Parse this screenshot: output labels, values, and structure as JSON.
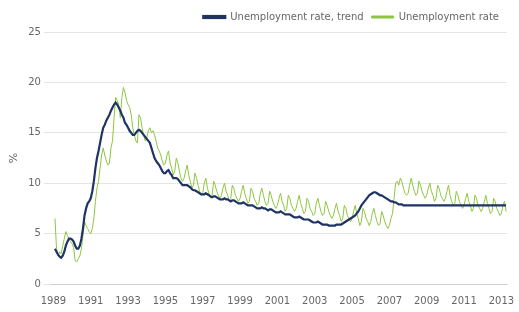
{
  "chart_data": {
    "type": "line",
    "ylabel": "%",
    "xlim": [
      1988.92,
      2013.3
    ],
    "xticks": [
      1989,
      1991,
      1993,
      1995,
      1997,
      1999,
      2001,
      2003,
      2005,
      2007,
      2009,
      2011,
      2013
    ],
    "ylim": [
      0,
      25
    ],
    "yticks": [
      0,
      5,
      10,
      15,
      20,
      25
    ],
    "grid": "y",
    "legend": "upper right",
    "x": [
      1989.083333,
      1989.166667,
      1989.25,
      1989.333333,
      1989.416667,
      1989.5,
      1989.583333,
      1989.666667,
      1989.75,
      1989.833333,
      1989.916667,
      1990,
      1990.083333,
      1990.166667,
      1990.25,
      1990.333333,
      1990.416667,
      1990.5,
      1990.583333,
      1990.666667,
      1990.75,
      1990.833333,
      1990.916667,
      1991,
      1991.083333,
      1991.166667,
      1991.25,
      1991.333333,
      1991.416667,
      1991.5,
      1991.583333,
      1991.666667,
      1991.75,
      1991.833333,
      1991.916667,
      1992,
      1992.083333,
      1992.166667,
      1992.25,
      1992.333333,
      1992.416667,
      1992.5,
      1992.583333,
      1992.666667,
      1992.75,
      1992.833333,
      1992.916667,
      1993,
      1993.083333,
      1993.166667,
      1993.25,
      1993.333333,
      1993.416667,
      1993.5,
      1993.583333,
      1993.666667,
      1993.75,
      1993.833333,
      1993.916667,
      1994,
      1994.083333,
      1994.166667,
      1994.25,
      1994.333333,
      1994.416667,
      1994.5,
      1994.583333,
      1994.666667,
      1994.75,
      1994.833333,
      1994.916667,
      1995,
      1995.083333,
      1995.166667,
      1995.25,
      1995.333333,
      1995.416667,
      1995.5,
      1995.583333,
      1995.666667,
      1995.75,
      1995.833333,
      1995.916667,
      1996,
      1996.083333,
      1996.166667,
      1996.25,
      1996.333333,
      1996.416667,
      1996.5,
      1996.583333,
      1996.666667,
      1996.75,
      1996.833333,
      1996.916667,
      1997,
      1997.083333,
      1997.166667,
      1997.25,
      1997.333333,
      1997.416667,
      1997.5,
      1997.583333,
      1997.666667,
      1997.75,
      1997.833333,
      1997.916667,
      1998,
      1998.083333,
      1998.166667,
      1998.25,
      1998.333333,
      1998.416667,
      1998.5,
      1998.583333,
      1998.666667,
      1998.75,
      1998.833333,
      1998.916667,
      1999,
      1999.083333,
      1999.166667,
      1999.25,
      1999.333333,
      1999.416667,
      1999.5,
      1999.583333,
      1999.666667,
      1999.75,
      1999.833333,
      1999.916667,
      2000,
      2000.083333,
      2000.166667,
      2000.25,
      2000.333333,
      2000.416667,
      2000.5,
      2000.583333,
      2000.666667,
      2000.75,
      2000.833333,
      2000.916667,
      2001,
      2001.083333,
      2001.166667,
      2001.25,
      2001.333333,
      2001.416667,
      2001.5,
      2001.583333,
      2001.666667,
      2001.75,
      2001.833333,
      2001.916667,
      2002,
      2002.083333,
      2002.166667,
      2002.25,
      2002.333333,
      2002.416667,
      2002.5,
      2002.583333,
      2002.666667,
      2002.75,
      2002.833333,
      2002.916667,
      2003,
      2003.083333,
      2003.166667,
      2003.25,
      2003.333333,
      2003.416667,
      2003.5,
      2003.583333,
      2003.666667,
      2003.75,
      2003.833333,
      2003.916667,
      2004,
      2004.083333,
      2004.166667,
      2004.25,
      2004.333333,
      2004.416667,
      2004.5,
      2004.583333,
      2004.666667,
      2004.75,
      2004.833333,
      2004.916667,
      2005,
      2005.083333,
      2005.166667,
      2005.25,
      2005.333333,
      2005.416667,
      2005.5,
      2005.583333,
      2005.666667,
      2005.75,
      2005.833333,
      2005.916667,
      2006,
      2006.083333,
      2006.166667,
      2006.25,
      2006.333333,
      2006.416667,
      2006.5,
      2006.583333,
      2006.666667,
      2006.75,
      2006.833333,
      2006.916667,
      2007,
      2007.083333,
      2007.166667,
      2007.25,
      2007.333333,
      2007.416667,
      2007.5,
      2007.583333,
      2007.666667,
      2007.75,
      2007.833333,
      2007.916667,
      2008,
      2008.083333,
      2008.166667,
      2008.25,
      2008.333333,
      2008.416667,
      2008.5,
      2008.583333,
      2008.666667,
      2008.75,
      2008.833333,
      2008.916667,
      2009,
      2009.083333,
      2009.166667,
      2009.25,
      2009.333333,
      2009.416667,
      2009.5,
      2009.583333,
      2009.666667,
      2009.75,
      2009.833333,
      2009.916667,
      2010,
      2010.083333,
      2010.166667,
      2010.25,
      2010.333333,
      2010.416667,
      2010.5,
      2010.583333,
      2010.666667,
      2010.75,
      2010.833333,
      2010.916667,
      2011,
      2011.083333,
      2011.166667,
      2011.25,
      2011.333333,
      2011.416667,
      2011.5,
      2011.583333,
      2011.666667,
      2011.75,
      2011.833333,
      2011.916667,
      2012,
      2012.083333,
      2012.166667,
      2012.25,
      2012.333333,
      2012.416667,
      2012.5,
      2012.583333,
      2012.666667,
      2012.75,
      2012.833333,
      2012.916667,
      2013,
      2013.083333,
      2013.166667,
      2013.25
    ],
    "series": [
      {
        "name": "Unemployment rate",
        "color": "#8dc63f",
        "values": [
          6.5,
          3.5,
          2.8,
          3.2,
          3.0,
          3.8,
          4.5,
          5.2,
          4.8,
          4.5,
          4.2,
          4.0,
          3.6,
          2.3,
          2.2,
          2.5,
          2.8,
          3.5,
          4.8,
          6.2,
          5.8,
          5.5,
          5.2,
          5.0,
          5.5,
          6.5,
          8.2,
          9.5,
          10.2,
          11.5,
          12.8,
          13.5,
          12.8,
          12.2,
          11.8,
          12.0,
          13.5,
          14.2,
          16.5,
          18.5,
          18.2,
          17.8,
          16.5,
          18.5,
          19.5,
          19.0,
          18.2,
          17.8,
          17.5,
          16.8,
          15.5,
          14.8,
          14.2,
          14.0,
          16.8,
          16.5,
          15.5,
          14.8,
          14.2,
          14.5,
          15.2,
          15.5,
          15.0,
          15.2,
          14.8,
          14.2,
          13.5,
          13.2,
          12.8,
          12.2,
          11.8,
          12.0,
          12.8,
          13.2,
          12.0,
          11.5,
          10.8,
          11.2,
          12.5,
          12.0,
          11.2,
          10.5,
          10.2,
          10.5,
          11.2,
          11.8,
          10.8,
          10.2,
          9.5,
          9.8,
          11.0,
          10.5,
          9.8,
          9.2,
          8.8,
          9.0,
          10.0,
          10.5,
          9.5,
          9.0,
          8.5,
          8.8,
          10.2,
          9.8,
          9.2,
          8.8,
          8.5,
          8.8,
          9.5,
          10.0,
          9.2,
          8.8,
          8.2,
          8.5,
          9.8,
          9.5,
          8.8,
          8.5,
          8.2,
          8.5,
          9.2,
          9.8,
          9.0,
          8.5,
          8.0,
          8.2,
          9.5,
          9.2,
          8.5,
          8.2,
          7.8,
          8.0,
          9.0,
          9.5,
          8.8,
          8.2,
          7.8,
          8.0,
          9.2,
          8.8,
          8.2,
          7.8,
          7.5,
          7.8,
          8.5,
          9.0,
          8.2,
          7.8,
          7.2,
          7.5,
          8.8,
          8.5,
          7.8,
          7.5,
          7.2,
          7.5,
          8.2,
          8.8,
          8.0,
          7.5,
          7.0,
          7.2,
          8.5,
          8.2,
          7.5,
          7.2,
          6.8,
          7.0,
          8.0,
          8.5,
          7.8,
          7.2,
          6.8,
          7.0,
          8.2,
          7.8,
          7.2,
          6.8,
          6.5,
          6.8,
          7.5,
          8.0,
          7.2,
          6.8,
          6.2,
          6.5,
          7.8,
          7.5,
          6.8,
          6.5,
          6.2,
          6.5,
          7.2,
          7.8,
          7.0,
          6.5,
          5.8,
          6.2,
          7.5,
          7.2,
          6.5,
          6.2,
          5.8,
          6.2,
          7.0,
          7.5,
          6.8,
          6.2,
          5.8,
          6.0,
          7.2,
          6.8,
          6.2,
          5.8,
          5.5,
          5.8,
          6.5,
          7.0,
          8.5,
          10.0,
          10.2,
          9.8,
          10.5,
          10.2,
          9.5,
          9.0,
          8.8,
          9.0,
          9.8,
          10.5,
          9.8,
          9.2,
          8.8,
          9.0,
          10.2,
          9.8,
          9.2,
          8.8,
          8.5,
          8.8,
          9.5,
          10.0,
          9.2,
          8.8,
          8.2,
          8.5,
          9.8,
          9.5,
          8.8,
          8.5,
          8.2,
          8.5,
          9.2,
          9.8,
          8.8,
          8.2,
          7.8,
          8.0,
          9.2,
          8.8,
          8.2,
          7.8,
          7.5,
          7.8,
          8.5,
          9.0,
          8.2,
          7.8,
          7.2,
          7.5,
          8.8,
          8.5,
          7.8,
          7.5,
          7.2,
          7.5,
          8.2,
          8.8,
          8.0,
          7.5,
          7.0,
          7.2,
          8.5,
          8.2,
          7.5,
          7.2,
          6.8,
          7.0,
          7.8,
          8.2,
          7.2
        ]
      },
      {
        "name": "Unemployment rate, trend",
        "color": "#1f3464",
        "values": [
          3.5,
          3.2,
          2.9,
          2.7,
          2.6,
          2.8,
          3.2,
          3.8,
          4.2,
          4.5,
          4.5,
          4.4,
          4.2,
          3.8,
          3.5,
          3.5,
          3.8,
          4.5,
          5.5,
          6.8,
          7.5,
          8.0,
          8.2,
          8.5,
          9.2,
          10.2,
          11.5,
          12.5,
          13.2,
          14.0,
          14.8,
          15.5,
          15.8,
          16.2,
          16.5,
          16.8,
          17.2,
          17.5,
          17.8,
          18.0,
          17.8,
          17.5,
          17.2,
          16.8,
          16.5,
          16.0,
          15.8,
          15.5,
          15.2,
          15.0,
          14.8,
          14.8,
          15.0,
          15.2,
          15.3,
          15.2,
          15.0,
          14.8,
          14.6,
          14.4,
          14.2,
          14.0,
          13.5,
          13.0,
          12.5,
          12.2,
          12.0,
          11.8,
          11.5,
          11.2,
          11.0,
          11.0,
          11.2,
          11.3,
          11.0,
          10.8,
          10.5,
          10.5,
          10.5,
          10.4,
          10.2,
          10.0,
          9.8,
          9.8,
          9.8,
          9.8,
          9.7,
          9.6,
          9.4,
          9.3,
          9.3,
          9.2,
          9.1,
          9.0,
          8.9,
          8.9,
          8.9,
          9.0,
          8.9,
          8.8,
          8.7,
          8.6,
          8.7,
          8.7,
          8.6,
          8.5,
          8.4,
          8.4,
          8.4,
          8.5,
          8.4,
          8.4,
          8.3,
          8.2,
          8.3,
          8.3,
          8.2,
          8.1,
          8.0,
          8.0,
          8.0,
          8.1,
          8.0,
          7.9,
          7.8,
          7.8,
          7.8,
          7.8,
          7.7,
          7.6,
          7.5,
          7.5,
          7.5,
          7.6,
          7.5,
          7.5,
          7.4,
          7.3,
          7.4,
          7.4,
          7.3,
          7.2,
          7.1,
          7.1,
          7.1,
          7.2,
          7.1,
          7.0,
          6.9,
          6.9,
          6.9,
          6.9,
          6.8,
          6.7,
          6.6,
          6.6,
          6.6,
          6.7,
          6.6,
          6.5,
          6.4,
          6.4,
          6.4,
          6.4,
          6.3,
          6.2,
          6.1,
          6.1,
          6.1,
          6.2,
          6.1,
          6.0,
          5.9,
          5.9,
          5.9,
          5.9,
          5.8,
          5.8,
          5.8,
          5.8,
          5.8,
          5.9,
          5.9,
          5.9,
          5.9,
          6.0,
          6.1,
          6.2,
          6.3,
          6.4,
          6.5,
          6.6,
          6.7,
          6.8,
          7.0,
          7.2,
          7.5,
          7.8,
          8.0,
          8.2,
          8.4,
          8.6,
          8.8,
          8.9,
          9.0,
          9.1,
          9.1,
          9.0,
          8.9,
          8.8,
          8.8,
          8.7,
          8.6,
          8.5,
          8.4,
          8.3,
          8.2,
          8.2,
          8.1,
          8.1,
          8.0,
          7.9,
          7.9,
          7.9,
          7.8,
          7.8,
          7.8,
          7.8,
          7.8,
          7.8,
          7.8,
          7.8,
          7.8,
          7.8,
          7.8,
          7.8,
          7.8,
          7.8,
          7.8,
          7.8,
          7.8,
          7.8,
          7.8,
          7.8,
          7.8,
          7.8,
          7.8,
          7.8,
          7.8,
          7.8,
          7.8,
          7.8,
          7.8,
          7.8,
          7.8,
          7.8,
          7.8,
          7.8,
          7.8,
          7.8,
          7.8,
          7.8,
          7.8,
          7.8,
          7.8,
          7.8,
          7.8,
          7.8,
          7.8,
          7.8,
          7.8,
          7.8,
          7.8,
          7.8,
          7.8,
          7.8,
          7.8,
          7.8,
          7.8,
          7.8,
          7.8,
          7.8,
          7.8,
          7.8,
          7.8,
          7.8,
          7.8,
          7.8,
          7.8,
          7.8,
          7.8
        ]
      }
    ]
  }
}
